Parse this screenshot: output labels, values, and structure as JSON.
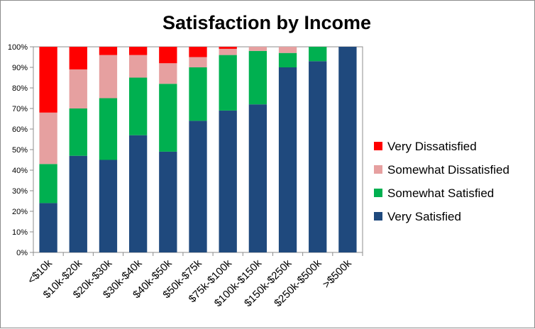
{
  "chart_data": {
    "type": "bar",
    "stacked": true,
    "title": "Satisfaction by Income",
    "xlabel": "",
    "ylabel": "",
    "ylim": [
      0,
      100
    ],
    "y_ticks": [
      "0%",
      "10%",
      "20%",
      "30%",
      "40%",
      "50%",
      "60%",
      "70%",
      "80%",
      "90%",
      "100%"
    ],
    "grid": false,
    "legend_position": "right",
    "categories": [
      "<$10k",
      "$10k-$20k",
      "$20k-$30k",
      "$30k-$40k",
      "$40k-$50k",
      "$50k-$75k",
      "$75k-$100k",
      "$100k-$150k",
      "$150k-$250k",
      "$250k-$500k",
      ">$500k"
    ],
    "series": [
      {
        "name": "Very Satisfied",
        "color": "#1f497d",
        "values": [
          24,
          47,
          45,
          57,
          49,
          64,
          69,
          72,
          90,
          93,
          100
        ]
      },
      {
        "name": "Somewhat Satisfied",
        "color": "#00b050",
        "values": [
          19,
          23,
          30,
          28,
          33,
          26,
          27,
          26,
          7,
          7,
          0
        ]
      },
      {
        "name": "Somewhat Dissatisfied",
        "color": "#e6a0a0",
        "values": [
          25,
          19,
          21,
          11,
          10,
          5,
          3,
          2,
          3,
          0,
          0
        ]
      },
      {
        "name": "Very Dissatisfied",
        "color": "#ff0000",
        "values": [
          32,
          11,
          4,
          4,
          8,
          5,
          1,
          0,
          0,
          0,
          0
        ]
      }
    ]
  }
}
